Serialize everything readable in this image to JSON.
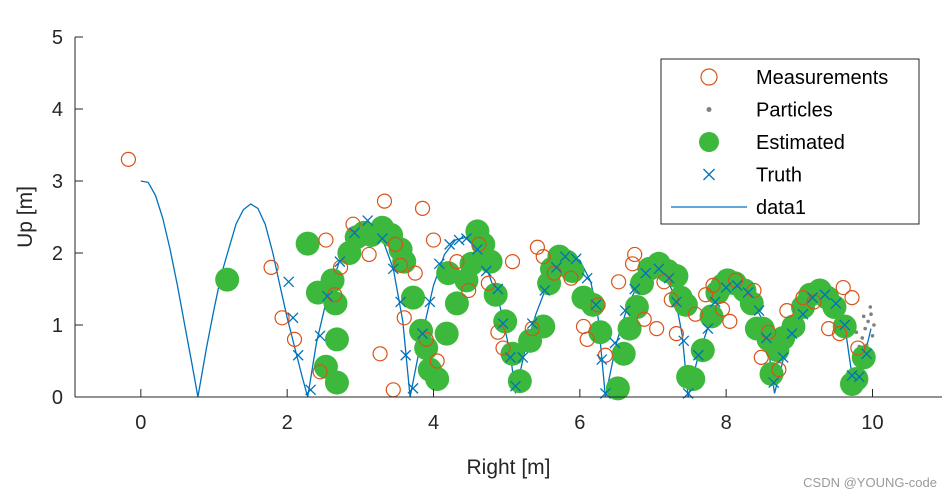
{
  "chart_data": {
    "type": "scatter",
    "title": "",
    "xlabel": "Right [m]",
    "ylabel": "Up [m]",
    "xlim": [
      -0.9,
      10.95
    ],
    "ylim": [
      0,
      5
    ],
    "xticks": [
      0,
      2,
      4,
      6,
      8,
      10
    ],
    "yticks": [
      0,
      1,
      2,
      3,
      4,
      5
    ],
    "grid": false,
    "legend_position": "top-right",
    "colors": {
      "measurements": "#D95319",
      "particles": "#808080",
      "estimated": "#3CB83C",
      "truth": "#0072BD",
      "data1": "#0072BD",
      "axis": "#262626"
    },
    "legend": [
      {
        "name": "Measurements",
        "marker": "open-circle"
      },
      {
        "name": "Particles",
        "marker": "dot"
      },
      {
        "name": "Estimated",
        "marker": "filled-circle"
      },
      {
        "name": "Truth",
        "marker": "cross"
      },
      {
        "name": "data1",
        "marker": "line"
      }
    ],
    "series": [
      {
        "name": "Measurements",
        "points": [
          [
            -0.17,
            3.3
          ],
          [
            1.78,
            1.8
          ],
          [
            1.93,
            1.1
          ],
          [
            2.1,
            0.8
          ],
          [
            2.53,
            2.18
          ],
          [
            2.65,
            1.42
          ],
          [
            2.73,
            1.8
          ],
          [
            2.45,
            0.35
          ],
          [
            2.9,
            2.4
          ],
          [
            3.12,
            1.98
          ],
          [
            3.33,
            2.72
          ],
          [
            3.48,
            2.12
          ],
          [
            3.55,
            1.83
          ],
          [
            3.27,
            0.6
          ],
          [
            3.45,
            0.1
          ],
          [
            3.75,
            1.72
          ],
          [
            3.6,
            1.1
          ],
          [
            3.85,
            2.62
          ],
          [
            4.0,
            2.18
          ],
          [
            3.9,
            0.8
          ],
          [
            4.05,
            0.5
          ],
          [
            4.32,
            1.88
          ],
          [
            4.48,
            1.48
          ],
          [
            4.62,
            2.12
          ],
          [
            4.75,
            1.58
          ],
          [
            4.88,
            0.9
          ],
          [
            4.95,
            0.68
          ],
          [
            5.08,
            1.88
          ],
          [
            5.35,
            0.95
          ],
          [
            5.42,
            2.08
          ],
          [
            5.5,
            1.95
          ],
          [
            5.65,
            1.72
          ],
          [
            5.88,
            1.65
          ],
          [
            6.05,
            0.98
          ],
          [
            6.1,
            0.8
          ],
          [
            6.25,
            1.28
          ],
          [
            6.35,
            0.58
          ],
          [
            6.53,
            1.6
          ],
          [
            6.72,
            1.85
          ],
          [
            6.75,
            1.98
          ],
          [
            6.88,
            1.08
          ],
          [
            7.05,
            0.95
          ],
          [
            7.15,
            1.6
          ],
          [
            7.25,
            1.35
          ],
          [
            7.32,
            0.88
          ],
          [
            7.58,
            1.15
          ],
          [
            7.72,
            1.42
          ],
          [
            7.82,
            1.55
          ],
          [
            7.95,
            1.22
          ],
          [
            8.05,
            1.05
          ],
          [
            8.13,
            1.62
          ],
          [
            8.38,
            1.48
          ],
          [
            8.48,
            0.55
          ],
          [
            8.58,
            0.9
          ],
          [
            8.72,
            0.38
          ],
          [
            8.83,
            1.2
          ],
          [
            9.05,
            1.38
          ],
          [
            9.2,
            1.32
          ],
          [
            9.4,
            0.95
          ],
          [
            9.55,
            0.88
          ],
          [
            9.6,
            1.52
          ],
          [
            9.72,
            1.38
          ],
          [
            9.8,
            0.68
          ]
        ]
      },
      {
        "name": "Estimated",
        "points": [
          [
            1.18,
            1.63
          ],
          [
            2.28,
            2.13
          ],
          [
            2.42,
            1.45
          ],
          [
            2.53,
            0.42
          ],
          [
            2.62,
            1.62
          ],
          [
            2.66,
            1.3
          ],
          [
            2.68,
            0.8
          ],
          [
            2.68,
            0.2
          ],
          [
            2.85,
            2.0
          ],
          [
            2.95,
            2.22
          ],
          [
            3.05,
            2.28
          ],
          [
            3.15,
            2.25
          ],
          [
            3.3,
            2.35
          ],
          [
            3.42,
            2.25
          ],
          [
            3.55,
            2.05
          ],
          [
            3.6,
            1.88
          ],
          [
            3.72,
            1.38
          ],
          [
            3.83,
            0.92
          ],
          [
            3.9,
            0.68
          ],
          [
            3.95,
            0.38
          ],
          [
            4.05,
            0.25
          ],
          [
            4.18,
            0.88
          ],
          [
            4.2,
            1.72
          ],
          [
            4.32,
            1.3
          ],
          [
            4.45,
            1.62
          ],
          [
            4.52,
            1.85
          ],
          [
            4.6,
            2.3
          ],
          [
            4.68,
            2.12
          ],
          [
            4.78,
            1.88
          ],
          [
            4.85,
            1.42
          ],
          [
            4.98,
            1.05
          ],
          [
            5.08,
            0.6
          ],
          [
            5.18,
            0.22
          ],
          [
            5.32,
            0.78
          ],
          [
            5.5,
            0.98
          ],
          [
            5.58,
            1.58
          ],
          [
            5.62,
            1.78
          ],
          [
            5.72,
            1.95
          ],
          [
            5.82,
            1.88
          ],
          [
            5.9,
            1.75
          ],
          [
            6.05,
            1.38
          ],
          [
            6.18,
            1.28
          ],
          [
            6.28,
            0.9
          ],
          [
            6.52,
            0.12
          ],
          [
            6.6,
            0.6
          ],
          [
            6.68,
            0.95
          ],
          [
            6.78,
            1.25
          ],
          [
            6.85,
            1.58
          ],
          [
            6.95,
            1.78
          ],
          [
            7.08,
            1.85
          ],
          [
            7.2,
            1.75
          ],
          [
            7.32,
            1.68
          ],
          [
            7.38,
            1.38
          ],
          [
            7.45,
            1.28
          ],
          [
            7.48,
            0.28
          ],
          [
            7.55,
            0.25
          ],
          [
            7.68,
            0.65
          ],
          [
            7.8,
            1.12
          ],
          [
            7.88,
            1.45
          ],
          [
            7.95,
            1.55
          ],
          [
            8.02,
            1.62
          ],
          [
            8.12,
            1.58
          ],
          [
            8.25,
            1.48
          ],
          [
            8.35,
            1.3
          ],
          [
            8.42,
            0.95
          ],
          [
            8.5,
            0.95
          ],
          [
            8.58,
            0.8
          ],
          [
            8.62,
            0.32
          ],
          [
            8.7,
            0.65
          ],
          [
            8.78,
            0.82
          ],
          [
            8.92,
            0.98
          ],
          [
            9.05,
            1.25
          ],
          [
            9.15,
            1.42
          ],
          [
            9.28,
            1.48
          ],
          [
            9.38,
            1.38
          ],
          [
            9.48,
            1.25
          ],
          [
            9.62,
            0.98
          ],
          [
            9.72,
            0.18
          ],
          [
            9.78,
            0.25
          ],
          [
            9.88,
            0.55
          ]
        ]
      },
      {
        "name": "Truth",
        "points": [
          [
            2.02,
            1.6
          ],
          [
            2.08,
            1.1
          ],
          [
            2.15,
            0.58
          ],
          [
            2.32,
            0.1
          ],
          [
            2.45,
            0.85
          ],
          [
            2.55,
            1.4
          ],
          [
            2.72,
            1.88
          ],
          [
            2.92,
            2.28
          ],
          [
            3.1,
            2.45
          ],
          [
            3.3,
            2.2
          ],
          [
            3.45,
            1.78
          ],
          [
            3.55,
            1.32
          ],
          [
            3.62,
            0.58
          ],
          [
            3.72,
            0.12
          ],
          [
            3.85,
            0.88
          ],
          [
            3.95,
            1.32
          ],
          [
            4.08,
            1.85
          ],
          [
            4.22,
            2.12
          ],
          [
            4.35,
            2.18
          ],
          [
            4.45,
            2.2
          ],
          [
            4.6,
            2.05
          ],
          [
            4.72,
            1.75
          ],
          [
            4.88,
            1.5
          ],
          [
            4.95,
            1.02
          ],
          [
            5.05,
            0.55
          ],
          [
            5.12,
            0.15
          ],
          [
            5.22,
            0.55
          ],
          [
            5.35,
            1.02
          ],
          [
            5.52,
            1.48
          ],
          [
            5.68,
            1.8
          ],
          [
            5.8,
            1.95
          ],
          [
            5.95,
            1.92
          ],
          [
            6.1,
            1.65
          ],
          [
            6.22,
            1.28
          ],
          [
            6.3,
            0.52
          ],
          [
            6.35,
            0.05
          ],
          [
            6.48,
            0.75
          ],
          [
            6.62,
            1.2
          ],
          [
            6.75,
            1.5
          ],
          [
            6.9,
            1.72
          ],
          [
            7.08,
            1.78
          ],
          [
            7.22,
            1.65
          ],
          [
            7.32,
            1.32
          ],
          [
            7.42,
            0.78
          ],
          [
            7.48,
            0.05
          ],
          [
            7.62,
            0.58
          ],
          [
            7.75,
            0.95
          ],
          [
            7.85,
            1.32
          ],
          [
            8.0,
            1.52
          ],
          [
            8.15,
            1.55
          ],
          [
            8.3,
            1.45
          ],
          [
            8.45,
            1.2
          ],
          [
            8.55,
            0.82
          ],
          [
            8.65,
            0.2
          ],
          [
            8.78,
            0.55
          ],
          [
            8.9,
            0.88
          ],
          [
            9.05,
            1.15
          ],
          [
            9.18,
            1.38
          ],
          [
            9.35,
            1.42
          ],
          [
            9.5,
            1.3
          ],
          [
            9.62,
            1.0
          ],
          [
            9.72,
            0.3
          ],
          [
            9.82,
            0.28
          ],
          [
            9.92,
            0.6
          ]
        ]
      },
      {
        "name": "data1",
        "points": [
          [
            0.0,
            3.0
          ],
          [
            0.1,
            2.98
          ],
          [
            0.2,
            2.8
          ],
          [
            0.3,
            2.48
          ],
          [
            0.4,
            2.05
          ],
          [
            0.5,
            1.55
          ],
          [
            0.6,
            1.0
          ],
          [
            0.7,
            0.45
          ],
          [
            0.78,
            0.0
          ],
          [
            0.9,
            0.7
          ],
          [
            1.0,
            1.22
          ],
          [
            1.1,
            1.7
          ],
          [
            1.2,
            2.05
          ],
          [
            1.3,
            2.4
          ],
          [
            1.4,
            2.6
          ],
          [
            1.5,
            2.68
          ],
          [
            1.6,
            2.62
          ],
          [
            1.7,
            2.4
          ],
          [
            1.8,
            2.02
          ],
          [
            1.9,
            1.55
          ],
          [
            2.0,
            1.1
          ],
          [
            2.1,
            0.7
          ],
          [
            2.2,
            0.3
          ],
          [
            2.28,
            0.0
          ],
          [
            2.4,
            0.75
          ],
          [
            2.55,
            1.4
          ],
          [
            2.72,
            1.9
          ],
          [
            2.92,
            2.28
          ],
          [
            3.1,
            2.45
          ],
          [
            3.3,
            2.2
          ],
          [
            3.45,
            1.78
          ],
          [
            3.58,
            1.05
          ],
          [
            3.68,
            0.0
          ],
          [
            3.85,
            0.88
          ],
          [
            4.0,
            1.55
          ],
          [
            4.15,
            1.98
          ],
          [
            4.3,
            2.18
          ],
          [
            4.45,
            2.22
          ],
          [
            4.6,
            2.05
          ],
          [
            4.75,
            1.72
          ],
          [
            4.9,
            1.3
          ],
          [
            5.05,
            0.6
          ],
          [
            5.12,
            0.05
          ],
          [
            5.25,
            0.65
          ],
          [
            5.4,
            1.15
          ],
          [
            5.55,
            1.55
          ],
          [
            5.72,
            1.85
          ],
          [
            5.85,
            1.97
          ],
          [
            6.0,
            1.9
          ],
          [
            6.15,
            1.6
          ],
          [
            6.25,
            1.1
          ],
          [
            6.35,
            0.0
          ],
          [
            6.5,
            0.75
          ],
          [
            6.65,
            1.25
          ],
          [
            6.8,
            1.58
          ],
          [
            7.0,
            1.78
          ],
          [
            7.15,
            1.72
          ],
          [
            7.3,
            1.4
          ],
          [
            7.4,
            0.85
          ],
          [
            7.48,
            0.0
          ],
          [
            7.62,
            0.58
          ],
          [
            7.78,
            1.05
          ],
          [
            7.95,
            1.45
          ],
          [
            8.12,
            1.55
          ],
          [
            8.3,
            1.45
          ],
          [
            8.48,
            1.1
          ],
          [
            8.6,
            0.5
          ],
          [
            8.66,
            0.05
          ],
          [
            8.8,
            0.6
          ],
          [
            8.95,
            0.98
          ],
          [
            9.12,
            1.3
          ],
          [
            9.3,
            1.42
          ],
          [
            9.48,
            1.3
          ],
          [
            9.62,
            1.0
          ],
          [
            9.72,
            0.3
          ],
          [
            9.85,
            0.4
          ],
          [
            9.98,
            0.95
          ]
        ]
      },
      {
        "name": "Particles",
        "points": [
          [
            9.82,
            0.7
          ],
          [
            9.86,
            0.82
          ],
          [
            9.9,
            0.95
          ],
          [
            9.94,
            1.05
          ],
          [
            9.98,
            1.15
          ],
          [
            9.85,
            0.62
          ],
          [
            9.92,
            0.72
          ],
          [
            10.0,
            0.85
          ],
          [
            9.78,
            0.9
          ],
          [
            9.88,
            1.12
          ],
          [
            9.95,
            0.58
          ],
          [
            10.02,
            1.0
          ],
          [
            9.8,
            0.55
          ],
          [
            9.9,
            0.5
          ],
          [
            9.97,
            1.25
          ]
        ]
      }
    ]
  },
  "watermark": "CSDN @YOUNG-code"
}
